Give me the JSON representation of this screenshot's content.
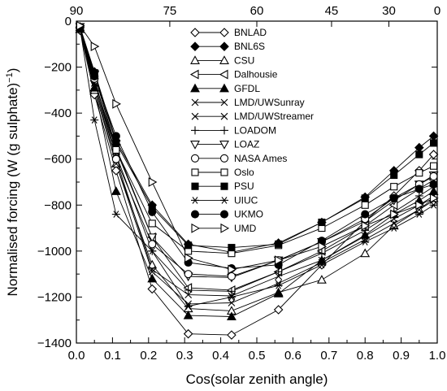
{
  "chart_data": {
    "type": "line",
    "xlabel": "Cos(solar zenith angle)",
    "ylabel": "Normalised forcing (W (g sulphate)",
    "ylabel_sup": "−1",
    "ylabel_close": ")",
    "xlim": [
      0,
      1
    ],
    "ylim": [
      -1400,
      0
    ],
    "x_ticks": [
      0,
      0.1,
      0.2,
      0.3,
      0.4,
      0.5,
      0.6,
      0.7,
      0.8,
      0.9,
      1
    ],
    "x_tick_labels": [
      "0.0",
      "0.1",
      "0.2",
      "0.3",
      "0.4",
      "0.5",
      "0.6",
      "0.7",
      "0.8",
      "0.9",
      "1.0"
    ],
    "y_ticks": [
      0,
      -200,
      -400,
      -600,
      -800,
      -1000,
      -1200,
      -1400
    ],
    "y_tick_labels": [
      "0",
      "−200",
      "−400",
      "−600",
      "−800",
      "−1000",
      "−1200",
      "−1400"
    ],
    "top_axis": {
      "ticks": [
        0,
        0.2588,
        0.5,
        0.7071,
        0.866,
        1
      ],
      "labels": [
        "90",
        "75",
        "60",
        "45",
        "30",
        "0"
      ]
    },
    "x": [
      0.01,
      0.05,
      0.11,
      0.21,
      0.31,
      0.43,
      0.56,
      0.68,
      0.8,
      0.88,
      0.95,
      0.99
    ],
    "grid": false,
    "legend_position": "top-center",
    "series": [
      {
        "name": "BNLAD",
        "marker": "diamond-open",
        "values": [
          -40,
          -320,
          -650,
          -1165,
          -1360,
          -1365,
          -1255,
          -1060,
          -870,
          -760,
          -650,
          -580
        ]
      },
      {
        "name": "BNL6S",
        "marker": "diamond-filled",
        "values": [
          -25,
          -220,
          -520,
          -800,
          -970,
          -1005,
          -965,
          -875,
          -765,
          -650,
          -550,
          -500
        ]
      },
      {
        "name": "CSU",
        "marker": "triangle-up-open",
        "values": [
          -35,
          -300,
          -620,
          -1060,
          -1250,
          -1260,
          -1180,
          -1125,
          -1010,
          -890,
          -820,
          -770
        ]
      },
      {
        "name": "Dalhousie",
        "marker": "triangle-left-open",
        "values": [
          -30,
          -260,
          -560,
          -940,
          -1160,
          -1170,
          -1090,
          -1000,
          -890,
          -800,
          -730,
          -690
        ]
      },
      {
        "name": "GFDL",
        "marker": "triangle-up-filled",
        "values": [
          -35,
          -290,
          -740,
          -1120,
          -1280,
          -1285,
          -1185,
          -1040,
          -930,
          -840,
          -780,
          -740
        ]
      },
      {
        "name": "LMD/UWSunray",
        "marker": "x",
        "values": [
          -30,
          -270,
          -600,
          -1080,
          -1190,
          -1195,
          -1110,
          -1040,
          -935,
          -860,
          -800,
          -760
        ]
      },
      {
        "name": "LMD/UWStreamer",
        "marker": "x",
        "values": [
          -35,
          -280,
          -620,
          -1090,
          -1230,
          -1225,
          -1140,
          -1050,
          -950,
          -880,
          -820,
          -780
        ]
      },
      {
        "name": "LOADOM",
        "marker": "plus",
        "values": [
          -30,
          -250,
          -580,
          -1000,
          -1170,
          -1175,
          -1090,
          -1010,
          -910,
          -830,
          -760,
          -720
        ]
      },
      {
        "name": "LOAZ",
        "marker": "triangle-down-open",
        "values": [
          -25,
          -230,
          -550,
          -940,
          -1110,
          -1115,
          -1040,
          -960,
          -870,
          -780,
          -710,
          -670
        ]
      },
      {
        "name": "NASA Ames",
        "marker": "circle-open",
        "values": [
          -30,
          -250,
          -600,
          -970,
          -1100,
          -1110,
          -1040,
          -960,
          -860,
          -770,
          -710,
          -675
        ]
      },
      {
        "name": "Oslo",
        "marker": "square-open",
        "values": [
          -25,
          -230,
          -560,
          -880,
          -1000,
          -1010,
          -975,
          -900,
          -800,
          -720,
          -660,
          -630
        ]
      },
      {
        "name": "PSU",
        "marker": "square-filled",
        "values": [
          -25,
          -225,
          -530,
          -810,
          -975,
          -985,
          -970,
          -875,
          -770,
          -670,
          -580,
          -530
        ]
      },
      {
        "name": "UIUC",
        "marker": "asterisk",
        "values": [
          -30,
          -430,
          -840,
          -1000,
          -1240,
          -1200,
          -1150,
          -1060,
          -960,
          -900,
          -840,
          -800
        ]
      },
      {
        "name": "UKMO",
        "marker": "circle-filled",
        "values": [
          -30,
          -240,
          -500,
          -830,
          -1050,
          -1075,
          -1060,
          -955,
          -840,
          -770,
          -730,
          -710
        ]
      },
      {
        "name": "UMD",
        "marker": "triangle-right-open",
        "values": [
          -20,
          -110,
          -360,
          -700,
          -1030,
          -1080,
          -1040,
          -980,
          -890,
          -840,
          -800,
          -770
        ]
      }
    ]
  }
}
